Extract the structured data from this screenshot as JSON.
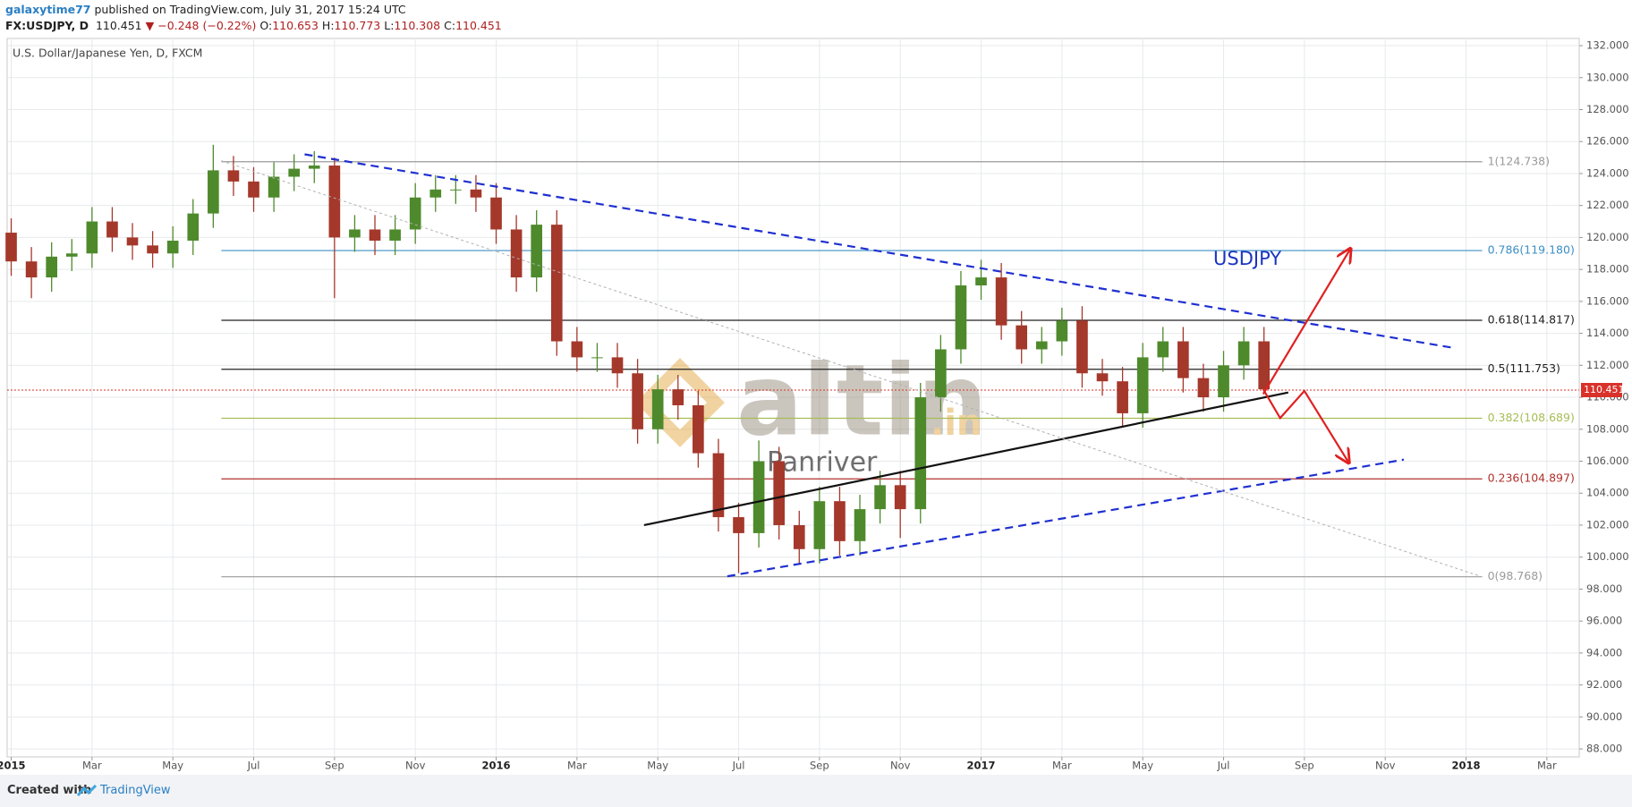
{
  "header": {
    "author": "galaxytime77",
    "published": "published on TradingView.com, July 31, 2017 15:24 UTC",
    "symbol": "FX:USDJPY, D",
    "last": "110.451",
    "change": "−0.248 (−0.22%)",
    "ohlc": [
      {
        "label": "O:",
        "value": "110.653"
      },
      {
        "label": "H:",
        "value": "110.773"
      },
      {
        "label": "L:",
        "value": "110.308"
      },
      {
        "label": "C:",
        "value": "110.451"
      }
    ]
  },
  "chart_data": {
    "type": "candlestick",
    "title": "U.S. Dollar/Japanese Yen, D, FXCM",
    "up_color": "#4e8a2c",
    "down_color": "#a4382b",
    "grid": true,
    "xlim": [
      -0.1,
      38.8
    ],
    "ylim": [
      87.5,
      132.45
    ],
    "xticks": [
      {
        "value": 0,
        "label": "2015"
      },
      {
        "value": 2,
        "label": "Mar"
      },
      {
        "value": 4,
        "label": "May"
      },
      {
        "value": 6,
        "label": "Jul"
      },
      {
        "value": 8,
        "label": "Sep"
      },
      {
        "value": 10,
        "label": "Nov"
      },
      {
        "value": 12,
        "label": "2016"
      },
      {
        "value": 14,
        "label": "Mar"
      },
      {
        "value": 16,
        "label": "May"
      },
      {
        "value": 18,
        "label": "Jul"
      },
      {
        "value": 20,
        "label": "Sep"
      },
      {
        "value": 22,
        "label": "Nov"
      },
      {
        "value": 24,
        "label": "2017"
      },
      {
        "value": 26,
        "label": "Mar"
      },
      {
        "value": 28,
        "label": "May"
      },
      {
        "value": 30,
        "label": "Jul"
      },
      {
        "value": 32,
        "label": "Sep"
      },
      {
        "value": 34,
        "label": "Nov"
      },
      {
        "value": 36,
        "label": "2018"
      },
      {
        "value": 38,
        "label": "Mar"
      }
    ],
    "yticks": [
      {
        "value": 88,
        "label": "88.000"
      },
      {
        "value": 90,
        "label": "90.000"
      },
      {
        "value": 92,
        "label": "92.000"
      },
      {
        "value": 94,
        "label": "94.000"
      },
      {
        "value": 96,
        "label": "96.000"
      },
      {
        "value": 98,
        "label": "98.000"
      },
      {
        "value": 100,
        "label": "100.000"
      },
      {
        "value": 102,
        "label": "102.000"
      },
      {
        "value": 104,
        "label": "104.000"
      },
      {
        "value": 106,
        "label": "106.000"
      },
      {
        "value": 108,
        "label": "108.000"
      },
      {
        "value": 110,
        "label": "110.000"
      },
      {
        "value": 112,
        "label": "112.000"
      },
      {
        "value": 114,
        "label": "114.000"
      },
      {
        "value": 116,
        "label": "116.000"
      },
      {
        "value": 118,
        "label": "118.000"
      },
      {
        "value": 120,
        "label": "120.000"
      },
      {
        "value": 122,
        "label": "122.000"
      },
      {
        "value": 124,
        "label": "124.000"
      },
      {
        "value": 126,
        "label": "126.000"
      },
      {
        "value": 128,
        "label": "128.000"
      },
      {
        "value": 130,
        "label": "130.000"
      },
      {
        "value": 132,
        "label": "132.000"
      }
    ],
    "candles": {
      "t": [
        0,
        0.5,
        1,
        1.5,
        2,
        2.5,
        3,
        3.5,
        4,
        4.5,
        5,
        5.5,
        6,
        6.5,
        7,
        7.5,
        8,
        8.5,
        9,
        9.5,
        10,
        10.5,
        11,
        11.5,
        12,
        12.5,
        13,
        13.5,
        14,
        14.5,
        15,
        15.5,
        16,
        16.5,
        17,
        17.5,
        18,
        18.5,
        19,
        19.5,
        20,
        20.5,
        21,
        21.5,
        22,
        22.5,
        23,
        23.5,
        24,
        24.5,
        25,
        25.5,
        26,
        26.5,
        27,
        27.5,
        28,
        28.5,
        29,
        29.5,
        30,
        30.5,
        31
      ],
      "open": [
        120.3,
        118.5,
        117.5,
        118.8,
        119.0,
        121.0,
        120.0,
        119.5,
        119.0,
        119.8,
        121.5,
        124.2,
        123.5,
        122.5,
        123.8,
        124.3,
        124.5,
        120.0,
        120.5,
        119.8,
        120.5,
        122.5,
        123.0,
        123.0,
        122.5,
        120.5,
        117.5,
        120.8,
        113.5,
        112.5,
        112.5,
        111.5,
        108.0,
        110.5,
        109.5,
        106.5,
        102.5,
        101.5,
        106.0,
        102.0,
        100.5,
        103.5,
        101.0,
        103.0,
        104.5,
        103.0,
        110.0,
        113.0,
        117.0,
        117.5,
        114.5,
        113.0,
        113.5,
        114.8,
        111.5,
        111.0,
        109.0,
        112.5,
        113.5,
        111.2,
        110.0,
        112.0,
        113.5
      ],
      "high": [
        121.2,
        119.4,
        119.7,
        119.9,
        121.9,
        121.9,
        120.9,
        120.4,
        120.7,
        122.4,
        125.8,
        125.1,
        124.4,
        124.7,
        125.2,
        125.4,
        125.0,
        121.4,
        121.4,
        121.4,
        123.4,
        123.9,
        123.9,
        123.9,
        123.4,
        121.4,
        121.7,
        121.7,
        114.4,
        113.4,
        113.4,
        112.4,
        111.4,
        111.4,
        110.4,
        107.4,
        103.4,
        107.3,
        106.9,
        102.9,
        104.4,
        104.4,
        103.9,
        105.4,
        105.4,
        110.9,
        113.9,
        117.9,
        118.6,
        118.4,
        115.4,
        114.4,
        115.6,
        115.7,
        112.4,
        111.9,
        113.4,
        114.4,
        114.4,
        112.1,
        112.9,
        114.4,
        114.4
      ],
      "low": [
        117.6,
        116.2,
        116.6,
        117.9,
        118.1,
        119.1,
        118.6,
        118.1,
        118.1,
        118.9,
        120.6,
        122.6,
        121.6,
        121.6,
        122.9,
        123.4,
        116.2,
        119.1,
        118.9,
        118.9,
        119.6,
        121.6,
        122.1,
        121.6,
        119.6,
        116.6,
        116.6,
        112.6,
        111.6,
        111.6,
        110.6,
        107.1,
        107.1,
        108.6,
        105.6,
        101.6,
        99.0,
        100.6,
        101.1,
        99.6,
        99.6,
        100.1,
        100.1,
        102.1,
        101.2,
        102.1,
        109.1,
        112.1,
        116.1,
        113.6,
        112.1,
        112.1,
        112.6,
        110.6,
        110.1,
        108.1,
        108.1,
        111.6,
        110.3,
        109.1,
        109.1,
        111.1,
        110.3
      ],
      "close": [
        118.5,
        117.5,
        118.8,
        119.0,
        121.0,
        120.0,
        119.5,
        119.0,
        119.8,
        121.5,
        124.2,
        123.5,
        122.5,
        123.8,
        124.3,
        124.5,
        120.0,
        120.5,
        119.8,
        120.5,
        122.5,
        123.0,
        123.0,
        122.5,
        120.5,
        117.5,
        120.8,
        113.5,
        112.5,
        112.5,
        111.5,
        108.0,
        110.5,
        109.5,
        106.5,
        102.5,
        101.5,
        106.0,
        102.0,
        100.5,
        103.5,
        101.0,
        103.0,
        104.5,
        103.0,
        110.0,
        113.0,
        117.0,
        117.5,
        114.5,
        113.0,
        113.5,
        114.8,
        111.5,
        111.0,
        109.0,
        112.5,
        113.5,
        111.2,
        110.0,
        112.0,
        113.5,
        110.5
      ]
    },
    "fib_range": [
      5.2,
      36.4
    ],
    "fib_levels": [
      {
        "label": "1(124.738)",
        "value": 124.738,
        "color": "#9a9a9a"
      },
      {
        "label": "0.786(119.180)",
        "value": 119.18,
        "color": "#3d8fc6"
      },
      {
        "label": "0.618(114.817)",
        "value": 114.817,
        "color": "#222222"
      },
      {
        "label": "0.5(111.753)",
        "value": 111.753,
        "color": "#222222"
      },
      {
        "label": "0.382(108.689)",
        "value": 108.689,
        "color": "#a6bd55"
      },
      {
        "label": "0.236(104.897)",
        "value": 104.897,
        "color": "#b0302c"
      },
      {
        "label": "0(98.768)",
        "value": 98.768,
        "color": "#9a9a9a"
      }
    ],
    "price_line": {
      "value": 110.451,
      "color": "#d9322b"
    },
    "drawings": [
      {
        "x": [
          7.26,
          35.67
        ],
        "y": [
          125.2,
          113.1
        ],
        "color": "#1f2fd0",
        "style": "dashed"
      },
      {
        "x": [
          17.72,
          34.46
        ],
        "y": [
          98.8,
          106.1
        ],
        "color": "#1f2fd0",
        "style": "dashed"
      },
      {
        "x": [
          15.66,
          31.6
        ],
        "y": [
          102.0,
          110.3
        ],
        "color": "#111111",
        "style": "solid"
      },
      {
        "x": [
          5.2,
          36.36
        ],
        "y": [
          124.8,
          98.8
        ],
        "color": "#b0b0b0",
        "style": "dotted"
      },
      {
        "x": [
          30.98,
          33.14
        ],
        "y": [
          110.2,
          119.3
        ],
        "color": "#e02020",
        "style": "arrow"
      },
      {
        "x": [
          30.98,
          31.4,
          32.0,
          33.1
        ],
        "y": [
          110.5,
          108.7,
          110.4,
          105.9
        ],
        "color": "#e02020",
        "style": "arrow"
      }
    ],
    "annotation": "USDJPY",
    "watermark": [
      "altin",
      ".in"
    ],
    "signature": "Panriver"
  },
  "footer": {
    "created": "Created with",
    "brand": "TradingView"
  }
}
